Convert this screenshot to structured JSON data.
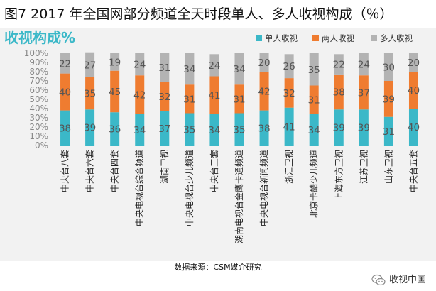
{
  "figure_title": "图7 2017 年全国网部分频道全天时段单人、多人收视构成（％）",
  "source_note": "数据来源：CSM媒介研究",
  "brand": {
    "name": "收视中国",
    "icon": "wechat-icon"
  },
  "colors": {
    "single": "#3bb8c8",
    "two": "#ef7c30",
    "multi": "#b3b3b3",
    "background": "#f2f2f2",
    "title_accent": "#3bb8c8"
  },
  "chart_data": {
    "type": "bar",
    "stacked": true,
    "title": "收视构成%",
    "ylim": [
      0,
      100
    ],
    "yticks": [
      "0%",
      "10%",
      "20%",
      "30%",
      "40%",
      "50%",
      "60%",
      "70%",
      "80%",
      "90%",
      "100%"
    ],
    "grid": false,
    "legend_position": "top-right",
    "categories": [
      "中央台八套",
      "中央台六套",
      "中央台四套",
      "中央电视台综合频道",
      "湖南卫视",
      "中央电视台少儿频道",
      "中央台三套",
      "湖南电视台金鹰卡通频道",
      "中央电视台新闻频道",
      "浙江卫视",
      "北京卡酷少儿频道",
      "上海东方卫视",
      "江苏卫视",
      "山东卫视",
      "中央台五套"
    ],
    "series": [
      {
        "name": "单人收视",
        "values": [
          38,
          39,
          36,
          34,
          37,
          35,
          34,
          35,
          38,
          41,
          34,
          39,
          39,
          31,
          40
        ]
      },
      {
        "name": "两人收视",
        "values": [
          40,
          35,
          45,
          42,
          32,
          31,
          41,
          31,
          42,
          32,
          31,
          38,
          37,
          39,
          40
        ]
      },
      {
        "name": "多人收视",
        "values": [
          22,
          27,
          19,
          24,
          31,
          34,
          24,
          34,
          20,
          26,
          35,
          22,
          24,
          30,
          20
        ]
      }
    ]
  }
}
